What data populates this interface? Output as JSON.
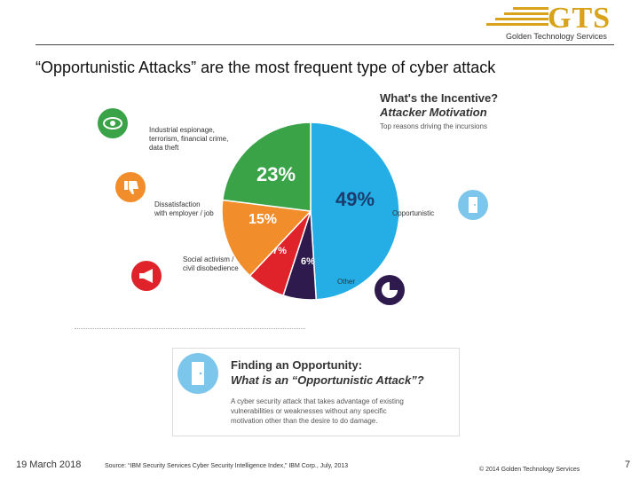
{
  "logo": {
    "text": "GTS",
    "subtitle": "Golden Technology Services",
    "color": "#d9a21b"
  },
  "slide_title": "“Opportunistic Attacks” are the most frequent type of cyber attack",
  "infographic": {
    "title": "What's the Incentive?",
    "subtitle": "Attacker Motivation",
    "description": "Top reasons driving the incursions"
  },
  "chart_data": {
    "type": "pie",
    "title": "What's the Incentive?",
    "subtitle": "Attacker Motivation",
    "unit": "%",
    "slices": [
      {
        "label": "Opportunistic",
        "value": 49,
        "color": "#25aee6"
      },
      {
        "label": "Other",
        "value": 6,
        "color": "#2e1a4d"
      },
      {
        "label": "Social activism / civil disobedience",
        "value": 7,
        "color": "#e0222a"
      },
      {
        "label": "Dissatisfaction with employer / job",
        "value": 15,
        "color": "#f28d2b"
      },
      {
        "label": "Industrial espionage, terrorism, financial crime, data theft",
        "value": 23,
        "color": "#3aa348"
      }
    ]
  },
  "labels": {
    "espionage": [
      "Industrial espionage,",
      "terrorism, financial crime,",
      "data theft"
    ],
    "dissatisfaction": [
      "Dissatisfaction",
      "with employer / job"
    ],
    "activism": [
      "Social activism /",
      "civil disobedience"
    ],
    "opportunistic": "Opportunistic",
    "other": "Other"
  },
  "icons": {
    "espionage": {
      "name": "eye-icon",
      "color": "#3aa348"
    },
    "dissatisfaction": {
      "name": "thumbs-down-icon",
      "color": "#f28d2b"
    },
    "activism": {
      "name": "megaphone-icon",
      "color": "#e0222a"
    },
    "opportunistic": {
      "name": "door-icon",
      "color": "#7cc6ec"
    },
    "other": {
      "name": "pie-icon",
      "color": "#2e1a4d"
    }
  },
  "definition": {
    "heading": "Finding an Opportunity:",
    "subheading": "What is an “Opportunistic Attack”?",
    "body": [
      "A cyber security attack that takes advantage of existing",
      "vulnerabilities or weaknesses without any specific",
      "motivation other than the desire to do damage."
    ]
  },
  "footer": {
    "date": "19 March 2018",
    "source": "Source: “IBM Security Services Cyber Security Intelligence Index,” IBM Corp., July, 2013",
    "copyright": "© 2014 Golden Technology Services",
    "page": "7"
  }
}
